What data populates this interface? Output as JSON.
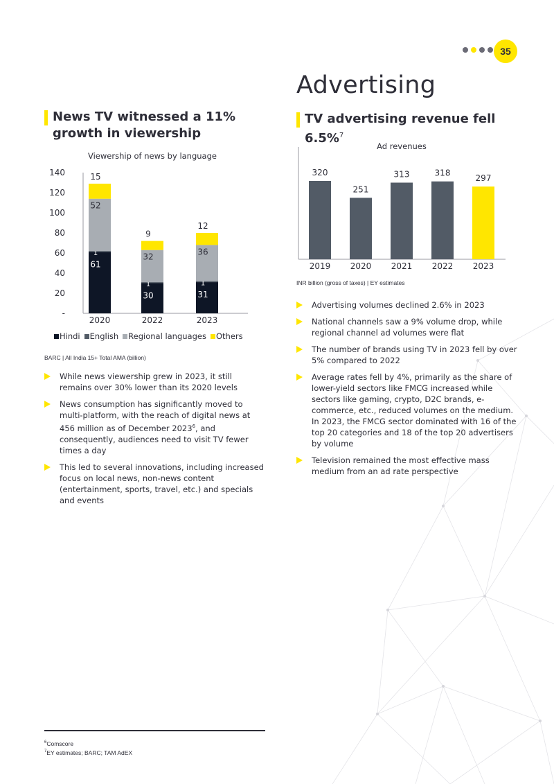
{
  "page": {
    "number": "35",
    "section_title": "Advertising"
  },
  "left": {
    "heading": "News TV witnessed a 11% growth in viewership",
    "chart_title": "Viewership of news by language",
    "source": "BARC | All India 15+ Total AMA (billion)",
    "bullets": [
      {
        "text": "While news viewership grew in 2023, it still remains over 30% lower than its 2020 levels"
      },
      {
        "text_pre": "News consumption has significantly moved to multi-platform, with the reach of digital news at 456 million as of December 2023",
        "sup": "6",
        "text_post": ", and consequently, audiences need to visit TV fewer times a day"
      },
      {
        "text": "This led to several innovations, including increased focus on local news, non-news content (entertainment, sports, travel, etc.) and specials and events"
      }
    ]
  },
  "right": {
    "heading": "TV advertising revenue fell 6.5%",
    "heading_sup": "7",
    "chart_title": "Ad revenues",
    "source": "INR billion (gross of taxes) | EY estimates",
    "bullets": [
      "Advertising volumes declined 2.6% in 2023",
      "National channels saw a 9% volume drop, while regional channel ad volumes were flat",
      "The number of brands using TV in 2023 fell by over 5% compared to 2022",
      "Average rates fell by 4%, primarily as the share of lower-yield sectors like FMCG increased while sectors like gaming, crypto, D2C brands, e-commerce, etc., reduced volumes on the medium. In 2023, the FMCG sector dominated with 16 of the top 20 categories and 18 of the top 20 advertisers by volume",
      "Television remained the most effective mass medium from an ad rate perspective"
    ]
  },
  "footnotes": [
    {
      "sup": "6",
      "text": "Comscore"
    },
    {
      "sup": "7",
      "text": "EY estimates; BARC; TAM AdEX"
    }
  ],
  "colors": {
    "yellow": "#ffe600",
    "navy": "#0e1626",
    "dark_gray": "#525b66",
    "light_gray": "#a8adb3",
    "text": "#2e2e38"
  },
  "chart_data": [
    {
      "type": "bar",
      "stacked": true,
      "title": "Viewership of news by language",
      "categories": [
        "2020",
        "2022",
        "2023"
      ],
      "series": [
        {
          "name": "Hindi",
          "values": [
            61,
            30,
            31
          ],
          "color": "#0e1626"
        },
        {
          "name": "English",
          "values": [
            1,
            1,
            1
          ],
          "color": "#525b66"
        },
        {
          "name": "Regional languages",
          "values": [
            52,
            32,
            36
          ],
          "color": "#a8adb3"
        },
        {
          "name": "Others",
          "values": [
            15,
            9,
            12
          ],
          "color": "#ffe600"
        }
      ],
      "yticks": [
        "-",
        "20",
        "40",
        "60",
        "80",
        "100",
        "120",
        "140"
      ],
      "ylim": [
        0,
        140
      ],
      "legend": "bottom",
      "grid": false
    },
    {
      "type": "bar",
      "title": "Ad revenues",
      "categories": [
        "2019",
        "2020",
        "2021",
        "2022",
        "2023"
      ],
      "values": [
        320,
        251,
        313,
        318,
        297
      ],
      "highlight_index": 4,
      "bar_color": "#525b66",
      "highlight_color": "#ffe600",
      "legend": "none",
      "grid": false
    }
  ]
}
